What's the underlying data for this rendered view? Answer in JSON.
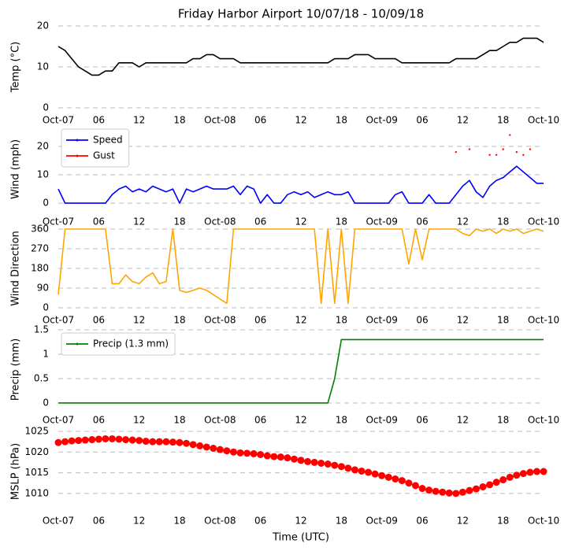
{
  "chart_data": [
    {
      "type": "line",
      "title": "Friday Harbor Airport 10/07/18 - 10/09/18",
      "ylabel": "Temp (°C)",
      "x": [
        0,
        1,
        2,
        3,
        4,
        5,
        6,
        7,
        8,
        9,
        10,
        11,
        12,
        13,
        14,
        15,
        16,
        17,
        18,
        19,
        20,
        21,
        22,
        23,
        24,
        25,
        26,
        27,
        28,
        29,
        30,
        31,
        32,
        33,
        34,
        35,
        36,
        37,
        38,
        39,
        40,
        41,
        42,
        43,
        44,
        45,
        46,
        47,
        48,
        49,
        50,
        51,
        52,
        53,
        54,
        55,
        56,
        57,
        58,
        59,
        60,
        61,
        62,
        63,
        64,
        65,
        66,
        67,
        68,
        69,
        70,
        71,
        72
      ],
      "xlim": [
        0,
        72
      ],
      "xticks": [
        {
          "value": 0,
          "label": "Oct-07"
        },
        {
          "value": 6,
          "label": "06"
        },
        {
          "value": 12,
          "label": "12"
        },
        {
          "value": 18,
          "label": "18"
        },
        {
          "value": 24,
          "label": "Oct-08"
        },
        {
          "value": 30,
          "label": "06"
        },
        {
          "value": 36,
          "label": "12"
        },
        {
          "value": 42,
          "label": "18"
        },
        {
          "value": 48,
          "label": "Oct-09"
        },
        {
          "value": 54,
          "label": "06"
        },
        {
          "value": 60,
          "label": "12"
        },
        {
          "value": 66,
          "label": "18"
        },
        {
          "value": 72,
          "label": "Oct-10"
        }
      ],
      "ylim": [
        0,
        20
      ],
      "yticks": [
        0,
        10,
        20
      ],
      "grid": true,
      "series": [
        {
          "name": "Temp",
          "color": "#000000",
          "style": "line",
          "values": [
            15,
            14,
            12,
            10,
            9,
            8,
            8,
            9,
            9,
            11,
            11,
            11,
            10,
            11,
            11,
            11,
            11,
            11,
            11,
            11,
            12,
            12,
            13,
            13,
            12,
            12,
            12,
            11,
            11,
            11,
            11,
            11,
            11,
            11,
            11,
            11,
            11,
            11,
            11,
            11,
            11,
            12,
            12,
            12,
            13,
            13,
            13,
            12,
            12,
            12,
            12,
            11,
            11,
            11,
            11,
            11,
            11,
            11,
            11,
            12,
            12,
            12,
            12,
            13,
            14,
            14,
            15,
            16,
            16,
            17,
            17,
            17,
            16
          ]
        }
      ]
    },
    {
      "type": "line",
      "ylabel": "Wind (mph)",
      "x": [
        0,
        1,
        2,
        3,
        4,
        5,
        6,
        7,
        8,
        9,
        10,
        11,
        12,
        13,
        14,
        15,
        16,
        17,
        18,
        19,
        20,
        21,
        22,
        23,
        24,
        25,
        26,
        27,
        28,
        29,
        30,
        31,
        32,
        33,
        34,
        35,
        36,
        37,
        38,
        39,
        40,
        41,
        42,
        43,
        44,
        45,
        46,
        47,
        48,
        49,
        50,
        51,
        52,
        53,
        54,
        55,
        56,
        57,
        58,
        59,
        60,
        61,
        62,
        63,
        64,
        65,
        66,
        67,
        68,
        69,
        70,
        71,
        72
      ],
      "xlim": [
        0,
        72
      ],
      "xticks": [
        {
          "value": 0,
          "label": "Oct-07"
        },
        {
          "value": 6,
          "label": "06"
        },
        {
          "value": 12,
          "label": "12"
        },
        {
          "value": 18,
          "label": "18"
        },
        {
          "value": 24,
          "label": "Oct-08"
        },
        {
          "value": 30,
          "label": "06"
        },
        {
          "value": 36,
          "label": "12"
        },
        {
          "value": 42,
          "label": "18"
        },
        {
          "value": 48,
          "label": "Oct-09"
        },
        {
          "value": 54,
          "label": "06"
        },
        {
          "value": 60,
          "label": "12"
        },
        {
          "value": 66,
          "label": "18"
        },
        {
          "value": 72,
          "label": "Oct-10"
        }
      ],
      "ylim": [
        -3.3,
        27.2
      ],
      "yticks": [
        0,
        10,
        20
      ],
      "grid": true,
      "legend": "upper left",
      "series": [
        {
          "name": "Speed",
          "color": "#0000ff",
          "style": "line",
          "values": [
            5,
            0,
            0,
            0,
            0,
            0,
            0,
            0,
            3,
            5,
            6,
            4,
            5,
            4,
            6,
            5,
            4,
            5,
            0,
            5,
            4,
            5,
            6,
            5,
            5,
            5,
            6,
            3,
            6,
            5,
            0,
            3,
            0,
            0,
            3,
            4,
            3,
            4,
            2,
            3,
            4,
            3,
            3,
            4,
            0,
            0,
            0,
            0,
            0,
            0,
            3,
            4,
            0,
            0,
            0,
            3,
            0,
            0,
            0,
            3,
            6,
            8,
            4,
            2,
            6,
            8,
            9,
            11,
            13,
            11,
            9,
            7,
            7
          ]
        },
        {
          "name": "Gust",
          "color": "#ff0000",
          "style": "markers",
          "values": [
            null,
            null,
            null,
            null,
            null,
            null,
            null,
            null,
            null,
            null,
            null,
            null,
            null,
            null,
            null,
            null,
            null,
            null,
            null,
            null,
            null,
            null,
            null,
            null,
            null,
            null,
            null,
            null,
            null,
            null,
            null,
            null,
            null,
            null,
            null,
            null,
            null,
            null,
            null,
            null,
            null,
            null,
            null,
            null,
            null,
            null,
            null,
            null,
            null,
            null,
            null,
            null,
            null,
            null,
            null,
            null,
            null,
            null,
            null,
            18,
            null,
            19,
            null,
            null,
            17,
            17,
            19,
            24,
            18,
            17,
            19,
            null,
            null
          ]
        }
      ]
    },
    {
      "type": "line",
      "ylabel": "Wind Direction",
      "x": [
        0,
        1,
        2,
        3,
        4,
        5,
        6,
        7,
        8,
        9,
        10,
        11,
        12,
        13,
        14,
        15,
        16,
        17,
        18,
        19,
        20,
        21,
        22,
        23,
        24,
        25,
        26,
        27,
        28,
        29,
        30,
        31,
        32,
        33,
        34,
        35,
        36,
        37,
        38,
        39,
        40,
        41,
        42,
        43,
        44,
        45,
        46,
        47,
        48,
        49,
        50,
        51,
        52,
        53,
        54,
        55,
        56,
        57,
        58,
        59,
        60,
        61,
        62,
        63,
        64,
        65,
        66,
        67,
        68,
        69,
        70,
        71,
        72
      ],
      "xlim": [
        0,
        72
      ],
      "xticks": [
        {
          "value": 0,
          "label": "Oct-07"
        },
        {
          "value": 6,
          "label": "06"
        },
        {
          "value": 12,
          "label": "12"
        },
        {
          "value": 18,
          "label": "18"
        },
        {
          "value": 24,
          "label": "Oct-08"
        },
        {
          "value": 30,
          "label": "06"
        },
        {
          "value": 36,
          "label": "12"
        },
        {
          "value": 42,
          "label": "18"
        },
        {
          "value": 48,
          "label": "Oct-09"
        },
        {
          "value": 54,
          "label": "06"
        },
        {
          "value": 60,
          "label": "12"
        },
        {
          "value": 66,
          "label": "18"
        },
        {
          "value": 72,
          "label": "Oct-10"
        }
      ],
      "ylim": [
        0,
        360
      ],
      "yticks": [
        0,
        90,
        180,
        270,
        360
      ],
      "grid": true,
      "series": [
        {
          "name": "Direction",
          "color": "#ffa500",
          "style": "line",
          "values": [
            60,
            360,
            360,
            360,
            360,
            360,
            360,
            360,
            110,
            110,
            150,
            120,
            110,
            140,
            160,
            110,
            120,
            360,
            80,
            70,
            80,
            90,
            80,
            60,
            40,
            20,
            360,
            360,
            360,
            360,
            360,
            360,
            360,
            360,
            360,
            360,
            360,
            360,
            360,
            20,
            360,
            20,
            360,
            20,
            360,
            360,
            360,
            360,
            360,
            360,
            360,
            360,
            200,
            360,
            220,
            360,
            360,
            360,
            360,
            360,
            340,
            330,
            360,
            350,
            360,
            340,
            360,
            350,
            360,
            340,
            350,
            360,
            350
          ]
        }
      ]
    },
    {
      "type": "line",
      "ylabel": "Precip (mm)",
      "x": [
        0,
        1,
        2,
        3,
        4,
        5,
        6,
        7,
        8,
        9,
        10,
        11,
        12,
        13,
        14,
        15,
        16,
        17,
        18,
        19,
        20,
        21,
        22,
        23,
        24,
        25,
        26,
        27,
        28,
        29,
        30,
        31,
        32,
        33,
        34,
        35,
        36,
        37,
        38,
        39,
        40,
        41,
        42,
        43,
        44,
        45,
        46,
        47,
        48,
        49,
        50,
        51,
        52,
        53,
        54,
        55,
        56,
        57,
        58,
        59,
        60,
        61,
        62,
        63,
        64,
        65,
        66,
        67,
        68,
        69,
        70,
        71,
        72
      ],
      "xlim": [
        0,
        72
      ],
      "xticks": [
        {
          "value": 0,
          "label": "Oct-07"
        },
        {
          "value": 6,
          "label": "06"
        },
        {
          "value": 12,
          "label": "12"
        },
        {
          "value": 18,
          "label": "18"
        },
        {
          "value": 24,
          "label": "Oct-08"
        },
        {
          "value": 30,
          "label": "06"
        },
        {
          "value": 36,
          "label": "12"
        },
        {
          "value": 42,
          "label": "18"
        },
        {
          "value": 48,
          "label": "Oct-09"
        },
        {
          "value": 54,
          "label": "06"
        },
        {
          "value": 60,
          "label": "12"
        },
        {
          "value": 66,
          "label": "18"
        },
        {
          "value": 72,
          "label": "Oct-10"
        }
      ],
      "ylim": [
        -0.13,
        1.5
      ],
      "yticks": [
        0.0,
        0.5,
        1.0,
        1.5
      ],
      "grid": true,
      "legend": "upper left",
      "series": [
        {
          "name": "Precip (1.3 mm)",
          "color": "#008000",
          "style": "line",
          "values": [
            0,
            0,
            0,
            0,
            0,
            0,
            0,
            0,
            0,
            0,
            0,
            0,
            0,
            0,
            0,
            0,
            0,
            0,
            0,
            0,
            0,
            0,
            0,
            0,
            0,
            0,
            0,
            0,
            0,
            0,
            0,
            0,
            0,
            0,
            0,
            0,
            0,
            0,
            0,
            0,
            0,
            0.5,
            1.3,
            1.3,
            1.3,
            1.3,
            1.3,
            1.3,
            1.3,
            1.3,
            1.3,
            1.3,
            1.3,
            1.3,
            1.3,
            1.3,
            1.3,
            1.3,
            1.3,
            1.3,
            1.3,
            1.3,
            1.3,
            1.3,
            1.3,
            1.3,
            1.3,
            1.3,
            1.3,
            1.3,
            1.3,
            1.3,
            1.3
          ]
        }
      ]
    },
    {
      "type": "line",
      "ylabel": "MSLP (hPa)",
      "xlabel": "Time (UTC)",
      "x": [
        0,
        1,
        2,
        3,
        4,
        5,
        6,
        7,
        8,
        9,
        10,
        11,
        12,
        13,
        14,
        15,
        16,
        17,
        18,
        19,
        20,
        21,
        22,
        23,
        24,
        25,
        26,
        27,
        28,
        29,
        30,
        31,
        32,
        33,
        34,
        35,
        36,
        37,
        38,
        39,
        40,
        41,
        42,
        43,
        44,
        45,
        46,
        47,
        48,
        49,
        50,
        51,
        52,
        53,
        54,
        55,
        56,
        57,
        58,
        59,
        60,
        61,
        62,
        63,
        64,
        65,
        66,
        67,
        68,
        69,
        70,
        71,
        72
      ],
      "xlim": [
        0,
        72
      ],
      "xticks": [
        {
          "value": 0,
          "label": "Oct-07"
        },
        {
          "value": 6,
          "label": "06"
        },
        {
          "value": 12,
          "label": "12"
        },
        {
          "value": 18,
          "label": "18"
        },
        {
          "value": 24,
          "label": "Oct-08"
        },
        {
          "value": 30,
          "label": "06"
        },
        {
          "value": 36,
          "label": "12"
        },
        {
          "value": 42,
          "label": "18"
        },
        {
          "value": 48,
          "label": "Oct-09"
        },
        {
          "value": 54,
          "label": "06"
        },
        {
          "value": 60,
          "label": "12"
        },
        {
          "value": 66,
          "label": "18"
        },
        {
          "value": 72,
          "label": "Oct-10"
        }
      ],
      "ylim": [
        1005.6,
        1025
      ],
      "yticks": [
        1010,
        1015,
        1020,
        1025
      ],
      "grid": true,
      "series": [
        {
          "name": "MSLP",
          "color": "#ff0000",
          "style": "line-markers",
          "values": [
            1022.3,
            1022.5,
            1022.7,
            1022.8,
            1022.9,
            1023.0,
            1023.1,
            1023.2,
            1023.2,
            1023.1,
            1023.0,
            1022.9,
            1022.8,
            1022.6,
            1022.5,
            1022.5,
            1022.5,
            1022.4,
            1022.3,
            1022.1,
            1021.8,
            1021.5,
            1021.2,
            1020.9,
            1020.6,
            1020.3,
            1020.0,
            1019.8,
            1019.7,
            1019.6,
            1019.4,
            1019.1,
            1018.9,
            1018.8,
            1018.6,
            1018.3,
            1018.0,
            1017.7,
            1017.5,
            1017.3,
            1017.1,
            1016.8,
            1016.5,
            1016.1,
            1015.7,
            1015.4,
            1015.1,
            1014.7,
            1014.3,
            1013.9,
            1013.5,
            1013.1,
            1012.5,
            1011.9,
            1011.2,
            1010.8,
            1010.5,
            1010.3,
            1010.1,
            1010.0,
            1010.3,
            1010.7,
            1011.1,
            1011.6,
            1012.1,
            1012.7,
            1013.3,
            1013.9,
            1014.4,
            1014.8,
            1015.1,
            1015.3,
            1015.3
          ]
        }
      ]
    }
  ]
}
